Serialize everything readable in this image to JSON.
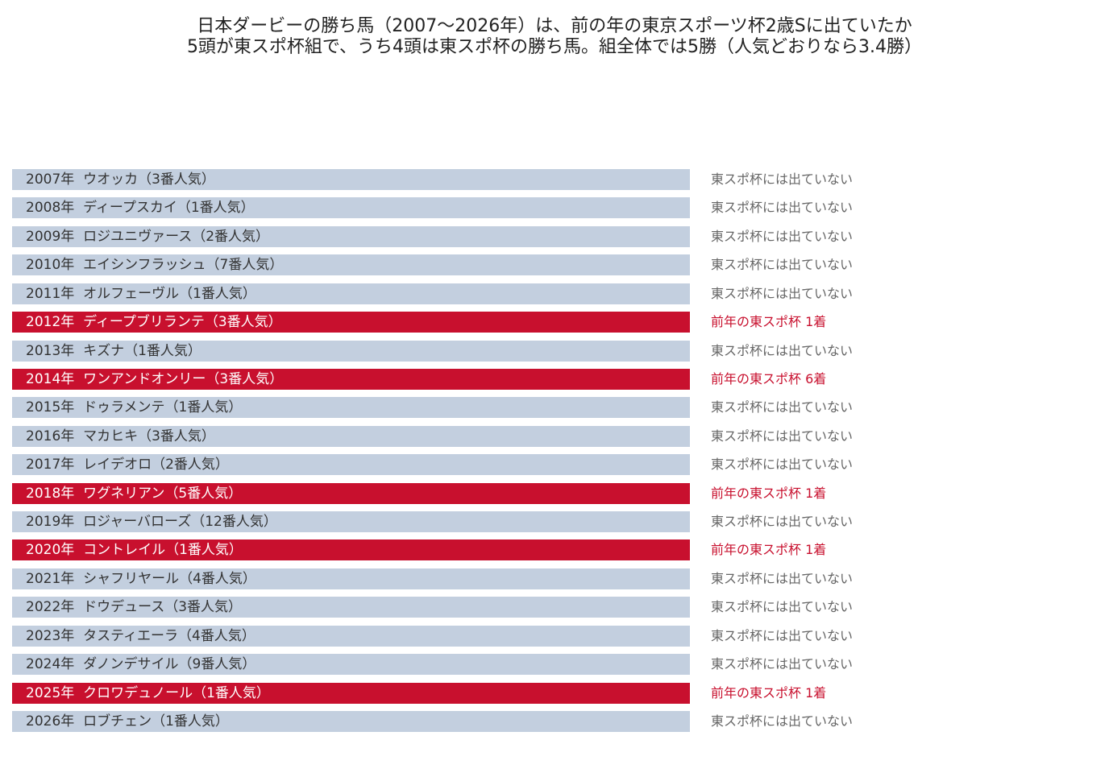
{
  "title": "日本ダービーの勝ち馬（2007〜2026年）は、前の年の東京スポーツ杯2歳Sに出ていたか",
  "subtitle": "5頭が東スポ杯組で、うち4頭は東スポ杯の勝ち馬。組全体では5勝（人気どおりなら3.4勝）",
  "highlight_color": "#c8102e",
  "normal_color": "#c3cfdf",
  "normal_text_color": "#333333",
  "highlight_text_color": "#ffffff",
  "normal_note_color": "#666666",
  "rows": [
    {
      "label": "2007年  ウオッカ（3番人気）",
      "note": "東スポ杯には出ていない",
      "highlight": false
    },
    {
      "label": "2008年  ディープスカイ（1番人気）",
      "note": "東スポ杯には出ていない",
      "highlight": false
    },
    {
      "label": "2009年  ロジユニヴァース（2番人気）",
      "note": "東スポ杯には出ていない",
      "highlight": false
    },
    {
      "label": "2010年  エイシンフラッシュ（7番人気）",
      "note": "東スポ杯には出ていない",
      "highlight": false
    },
    {
      "label": "2011年  オルフェーヴル（1番人気）",
      "note": "東スポ杯には出ていない",
      "highlight": false
    },
    {
      "label": "2012年  ディープブリランテ（3番人気）",
      "note": "前年の東スポ杯 1着",
      "highlight": true
    },
    {
      "label": "2013年  キズナ（1番人気）",
      "note": "東スポ杯には出ていない",
      "highlight": false
    },
    {
      "label": "2014年  ワンアンドオンリー（3番人気）",
      "note": "前年の東スポ杯 6着",
      "highlight": true
    },
    {
      "label": "2015年  ドゥラメンテ（1番人気）",
      "note": "東スポ杯には出ていない",
      "highlight": false
    },
    {
      "label": "2016年  マカヒキ（3番人気）",
      "note": "東スポ杯には出ていない",
      "highlight": false
    },
    {
      "label": "2017年  レイデオロ（2番人気）",
      "note": "東スポ杯には出ていない",
      "highlight": false
    },
    {
      "label": "2018年  ワグネリアン（5番人気）",
      "note": "前年の東スポ杯 1着",
      "highlight": true
    },
    {
      "label": "2019年  ロジャーバローズ（12番人気）",
      "note": "東スポ杯には出ていない",
      "highlight": false
    },
    {
      "label": "2020年  コントレイル（1番人気）",
      "note": "前年の東スポ杯 1着",
      "highlight": true
    },
    {
      "label": "2021年  シャフリヤール（4番人気）",
      "note": "東スポ杯には出ていない",
      "highlight": false
    },
    {
      "label": "2022年  ドウデュース（3番人気）",
      "note": "東スポ杯には出ていない",
      "highlight": false
    },
    {
      "label": "2023年  タスティエーラ（4番人気）",
      "note": "東スポ杯には出ていない",
      "highlight": false
    },
    {
      "label": "2024年  ダノンデサイル（9番人気）",
      "note": "東スポ杯には出ていない",
      "highlight": false
    },
    {
      "label": "2025年  クロワデュノール（1番人気）",
      "note": "前年の東スポ杯 1着",
      "highlight": true
    },
    {
      "label": "2026年  ロブチェン（1番人気）",
      "note": "東スポ杯には出ていない",
      "highlight": false
    }
  ]
}
